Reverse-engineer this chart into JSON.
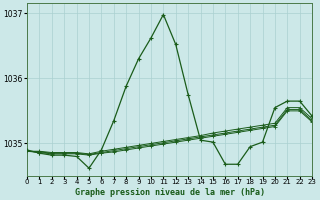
{
  "title": "Graphe pression niveau de la mer (hPa)",
  "background_color": "#cce8e8",
  "grid_color": "#aad0d0",
  "line_color": "#1a5c1a",
  "xlim": [
    0,
    23
  ],
  "ylim": [
    1034.5,
    1037.15
  ],
  "yticks": [
    1035,
    1036,
    1037
  ],
  "xtick_labels": [
    "0",
    "1",
    "2",
    "3",
    "4",
    "5",
    "6",
    "7",
    "8",
    "9",
    "10",
    "11",
    "12",
    "13",
    "14",
    "15",
    "16",
    "17",
    "18",
    "19",
    "20",
    "21",
    "22",
    "23"
  ],
  "main_series": [
    1034.9,
    1034.85,
    1034.82,
    1034.82,
    1034.8,
    1034.62,
    1034.9,
    1035.35,
    1035.88,
    1036.3,
    1036.62,
    1036.98,
    1036.52,
    1035.75,
    1035.05,
    1035.02,
    1034.68,
    1034.68,
    1034.95,
    1035.02,
    1035.55,
    1035.65,
    1035.65,
    1035.42
  ],
  "linear_series": [
    [
      1034.88,
      1034.88,
      1034.86,
      1034.86,
      1034.86,
      1034.84,
      1034.88,
      1034.91,
      1034.94,
      1034.97,
      1035.0,
      1035.03,
      1035.06,
      1035.09,
      1035.12,
      1035.16,
      1035.19,
      1035.22,
      1035.25,
      1035.28,
      1035.31,
      1035.55,
      1035.55,
      1035.38
    ],
    [
      1034.88,
      1034.87,
      1034.85,
      1034.85,
      1034.85,
      1034.83,
      1034.86,
      1034.89,
      1034.92,
      1034.95,
      1034.98,
      1035.01,
      1035.04,
      1035.07,
      1035.1,
      1035.13,
      1035.16,
      1035.19,
      1035.22,
      1035.25,
      1035.28,
      1035.52,
      1035.52,
      1035.35
    ],
    [
      1034.88,
      1034.86,
      1034.84,
      1034.84,
      1034.84,
      1034.82,
      1034.85,
      1034.87,
      1034.9,
      1034.93,
      1034.96,
      1034.99,
      1035.02,
      1035.05,
      1035.08,
      1035.11,
      1035.14,
      1035.17,
      1035.2,
      1035.23,
      1035.26,
      1035.5,
      1035.5,
      1035.33
    ]
  ]
}
